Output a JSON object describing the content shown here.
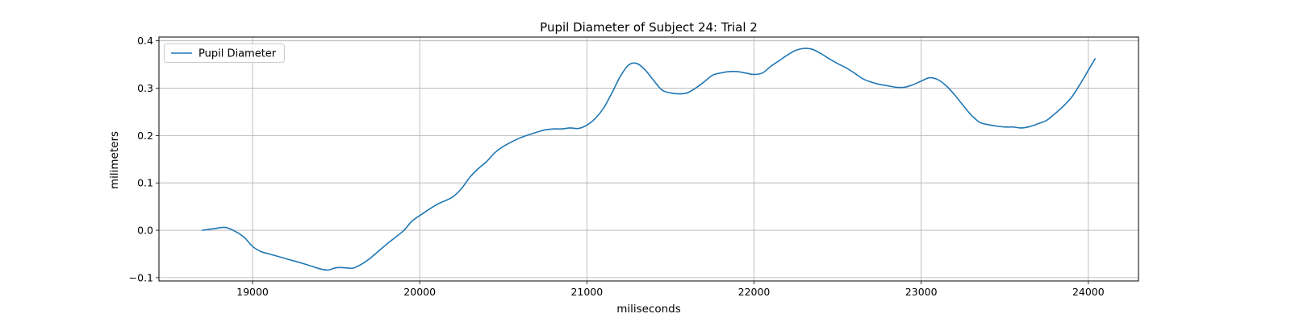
{
  "chart_data": {
    "type": "line",
    "title": "Pupil Diameter of Subject 24: Trial 2",
    "xlabel": "miliseconds",
    "ylabel": "milimeters",
    "xlim": [
      18440,
      24300
    ],
    "ylim": [
      -0.107,
      0.408
    ],
    "x_ticks": [
      19000,
      20000,
      21000,
      22000,
      23000,
      24000
    ],
    "y_ticks": [
      -0.1,
      0.0,
      0.1,
      0.2,
      0.3,
      0.4
    ],
    "y_tick_labels": [
      "−0.1",
      "0.0",
      "0.1",
      "0.2",
      "0.3",
      "0.4"
    ],
    "grid": true,
    "legend_position": "top-left",
    "series": [
      {
        "name": "Pupil Diameter",
        "color": "#1f77b4",
        "x": [
          18700,
          18780,
          18820,
          18850,
          18900,
          18950,
          19000,
          19050,
          19100,
          19200,
          19300,
          19400,
          19450,
          19500,
          19550,
          19600,
          19650,
          19700,
          19800,
          19900,
          19950,
          20000,
          20100,
          20150,
          20200,
          20250,
          20300,
          20350,
          20400,
          20450,
          20500,
          20600,
          20700,
          20750,
          20800,
          20850,
          20900,
          20950,
          21000,
          21050,
          21100,
          21150,
          21200,
          21250,
          21300,
          21350,
          21400,
          21450,
          21500,
          21550,
          21600,
          21650,
          21700,
          21750,
          21800,
          21850,
          21900,
          21950,
          22000,
          22050,
          22100,
          22150,
          22200,
          22250,
          22300,
          22350,
          22400,
          22450,
          22500,
          22550,
          22600,
          22650,
          22700,
          22750,
          22800,
          22850,
          22900,
          22950,
          23000,
          23050,
          23100,
          23150,
          23200,
          23250,
          23300,
          23350,
          23400,
          23450,
          23500,
          23550,
          23600,
          23650,
          23700,
          23750,
          23800,
          23850,
          23900,
          23950,
          24000,
          24040
        ],
        "y": [
          0.0,
          0.004,
          0.006,
          0.005,
          -0.003,
          -0.015,
          -0.034,
          -0.045,
          -0.05,
          -0.06,
          -0.07,
          -0.081,
          -0.084,
          -0.079,
          -0.079,
          -0.08,
          -0.072,
          -0.06,
          -0.03,
          -0.002,
          0.018,
          0.031,
          0.054,
          0.062,
          0.071,
          0.088,
          0.112,
          0.13,
          0.145,
          0.164,
          0.177,
          0.195,
          0.207,
          0.212,
          0.214,
          0.214,
          0.216,
          0.215,
          0.222,
          0.236,
          0.258,
          0.29,
          0.325,
          0.349,
          0.352,
          0.338,
          0.316,
          0.296,
          0.29,
          0.288,
          0.29,
          0.3,
          0.313,
          0.327,
          0.332,
          0.335,
          0.335,
          0.332,
          0.329,
          0.332,
          0.346,
          0.358,
          0.37,
          0.38,
          0.384,
          0.382,
          0.373,
          0.362,
          0.352,
          0.343,
          0.332,
          0.32,
          0.313,
          0.308,
          0.305,
          0.302,
          0.302,
          0.307,
          0.315,
          0.322,
          0.318,
          0.305,
          0.286,
          0.264,
          0.243,
          0.228,
          0.223,
          0.22,
          0.218,
          0.218,
          0.216,
          0.219,
          0.225,
          0.232,
          0.246,
          0.262,
          0.281,
          0.308,
          0.338,
          0.362
        ]
      }
    ]
  }
}
